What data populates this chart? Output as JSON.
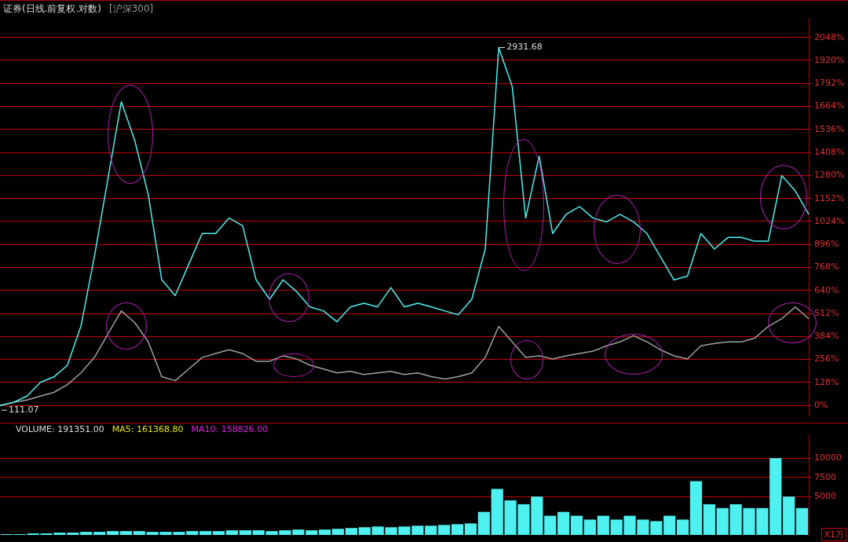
{
  "chart_data": [
    {
      "type": "line",
      "title": "证券(日线.前复权.对数)",
      "subtitle": "[沪深300]",
      "categories": [
        null,
        null,
        null,
        null,
        null,
        null,
        null,
        null,
        null,
        null,
        null,
        null,
        null,
        null,
        null,
        null,
        null,
        null,
        null,
        null,
        null,
        null,
        null,
        null,
        null,
        null,
        null,
        null,
        null,
        null,
        null,
        null,
        null,
        null,
        null,
        null,
        null,
        null,
        null,
        null,
        null,
        null,
        null,
        null,
        null,
        null,
        null,
        null,
        null,
        null,
        null,
        null,
        null,
        null,
        null,
        null,
        null,
        null,
        null,
        null,
        null
      ],
      "series": [
        {
          "color": "#4ef0f0",
          "values": [
            0,
            17,
            52,
            129,
            159,
            224,
            440,
            828,
            1259,
            1690,
            1474,
            1173,
            699,
            612,
            785,
            957,
            957,
            1043,
            1000,
            699,
            591,
            699,
            634,
            548,
            526,
            466,
            548,
            569,
            548,
            656,
            548,
            569,
            548,
            526,
            505,
            591,
            871,
            1992,
            1776,
            1043,
            1388,
            957,
            1064,
            1107,
            1043,
            1022,
            1064,
            1022,
            957,
            828,
            699,
            720,
            957,
            871,
            935,
            935,
            914,
            914,
            1280,
            1194,
            1064
          ]
        },
        {
          "color": "#a0a0a0",
          "values": [
            0,
            17,
            30,
            52,
            73,
            116,
            181,
            267,
            397,
            526,
            461,
            354,
            160,
            138,
            203,
            267,
            289,
            310,
            289,
            246,
            246,
            276,
            259,
            224,
            203,
            181,
            190,
            172,
            181,
            190,
            172,
            181,
            160,
            147,
            160,
            181,
            267,
            440,
            354,
            267,
            276,
            259,
            276,
            289,
            302,
            332,
            354,
            388,
            354,
            310,
            276,
            259,
            332,
            345,
            354,
            354,
            375,
            440,
            483,
            548,
            483
          ]
        }
      ],
      "ylim": [
        -56,
        2156
      ],
      "yticks": [
        {
          "value": 0,
          "label": "0%"
        },
        {
          "value": 128,
          "label": "128%"
        },
        {
          "value": 256,
          "label": "256%"
        },
        {
          "value": 384,
          "label": "384%"
        },
        {
          "value": 512,
          "label": "512%"
        },
        {
          "value": 640,
          "label": "640%"
        },
        {
          "value": 768,
          "label": "768%"
        },
        {
          "value": 896,
          "label": "896%"
        },
        {
          "value": 1024,
          "label": "1024%"
        },
        {
          "value": 1152,
          "label": "1152%"
        },
        {
          "value": 1280,
          "label": "1280%"
        },
        {
          "value": 1408,
          "label": "1408%"
        },
        {
          "value": 1536,
          "label": "1536%"
        },
        {
          "value": 1664,
          "label": "1664%"
        },
        {
          "value": 1792,
          "label": "1792%"
        },
        {
          "value": 1920,
          "label": "1920%"
        },
        {
          "value": 2048,
          "label": "2048%"
        }
      ],
      "annotations": [
        "2931.68",
        "111.07"
      ],
      "grid": "y",
      "legend": false,
      "tick_labels": "y",
      "marker": "none"
    },
    {
      "type": "bar",
      "ylabel": "X1万",
      "categories": [
        null,
        null,
        null,
        null,
        null,
        null,
        null,
        null,
        null,
        null,
        null,
        null,
        null,
        null,
        null,
        null,
        null,
        null,
        null,
        null,
        null,
        null,
        null,
        null,
        null,
        null,
        null,
        null,
        null,
        null,
        null,
        null,
        null,
        null,
        null,
        null,
        null,
        null,
        null,
        null,
        null,
        null,
        null,
        null,
        null,
        null,
        null,
        null,
        null,
        null,
        null,
        null,
        null,
        null,
        null,
        null,
        null,
        null,
        null,
        null,
        null
      ],
      "values": [
        100,
        100,
        200,
        200,
        300,
        300,
        400,
        400,
        500,
        500,
        500,
        400,
        400,
        400,
        500,
        500,
        500,
        600,
        600,
        600,
        500,
        600,
        700,
        600,
        700,
        800,
        900,
        1000,
        1100,
        1000,
        1100,
        1200,
        1200,
        1300,
        1400,
        1500,
        3000,
        6000,
        4500,
        4000,
        5000,
        2500,
        3000,
        2500,
        2000,
        2500,
        2000,
        2500,
        2000,
        1800,
        2500,
        2000,
        7000,
        4000,
        3500,
        4000,
        3500,
        3500,
        10000,
        5000,
        3500
      ],
      "color": "#4ef0f0",
      "ylim": [
        0,
        13100
      ],
      "yticks": [
        5000,
        7500,
        10000
      ],
      "annotations": [
        "VOLUME: 191351.00",
        "MA5: 161368.80",
        "MA10: 158826.00"
      ],
      "grid": "y",
      "legend": false,
      "tick_labels": "y"
    }
  ]
}
